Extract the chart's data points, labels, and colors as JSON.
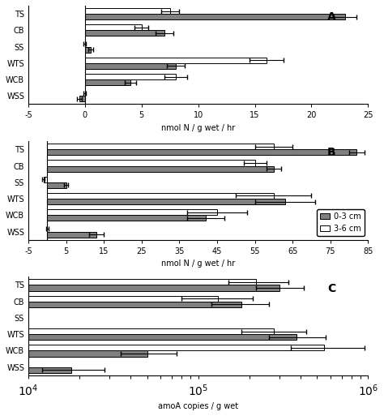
{
  "categories": [
    "TS",
    "CB",
    "SS",
    "WTS",
    "WCB",
    "WSS"
  ],
  "panel_A": {
    "gray_vals": [
      23.0,
      7.0,
      0.5,
      8.0,
      4.0,
      -0.5
    ],
    "white_vals": [
      7.5,
      5.0,
      0.0,
      16.0,
      8.0,
      0.0
    ],
    "gray_err": [
      1.0,
      0.8,
      0.2,
      0.8,
      0.5,
      0.2
    ],
    "white_err": [
      0.8,
      0.6,
      0.1,
      1.5,
      1.0,
      0.1
    ],
    "xlim": [
      -5.0,
      25.0
    ],
    "xticks": [
      -5.0,
      0.0,
      5.0,
      10.0,
      15.0,
      20.0,
      25.0
    ],
    "xlabel": "nmol N / g wet / hr",
    "label": "A"
  },
  "panel_B": {
    "gray_vals": [
      82.0,
      60.0,
      5.0,
      63.0,
      42.0,
      13.0
    ],
    "white_vals": [
      60.0,
      55.0,
      -1.0,
      60.0,
      45.0,
      0.0
    ],
    "gray_err": [
      2.0,
      2.0,
      0.5,
      8.0,
      5.0,
      2.0
    ],
    "white_err": [
      5.0,
      3.0,
      0.3,
      10.0,
      8.0,
      0.3
    ],
    "xlim": [
      -5.0,
      85.0
    ],
    "xticks": [
      -5,
      5,
      15,
      25,
      35,
      45,
      55,
      65,
      75,
      85
    ],
    "xlabel": "nmol N / g wet / hr",
    "label": "B"
  },
  "panel_C": {
    "gray_vals": [
      300000,
      180000,
      0,
      380000,
      50000,
      18000
    ],
    "white_vals": [
      220000,
      130000,
      0,
      280000,
      550000,
      0
    ],
    "gray_err_lo": [
      80000,
      60000,
      0,
      120000,
      15000,
      6000
    ],
    "gray_err_hi": [
      120000,
      80000,
      0,
      180000,
      25000,
      10000
    ],
    "white_err_lo": [
      70000,
      50000,
      0,
      100000,
      200000,
      0
    ],
    "white_err_hi": [
      120000,
      80000,
      0,
      150000,
      400000,
      0
    ],
    "xlim": [
      10000.0,
      1000000.0
    ],
    "xlabel": "amoA copies / g wet",
    "label": "C"
  },
  "legend_labels": [
    "0-3 cm",
    "3-6 cm"
  ],
  "gray_color": "#808080",
  "white_color": "#ffffff",
  "bar_edge_color": "#000000",
  "bar_height": 0.35
}
